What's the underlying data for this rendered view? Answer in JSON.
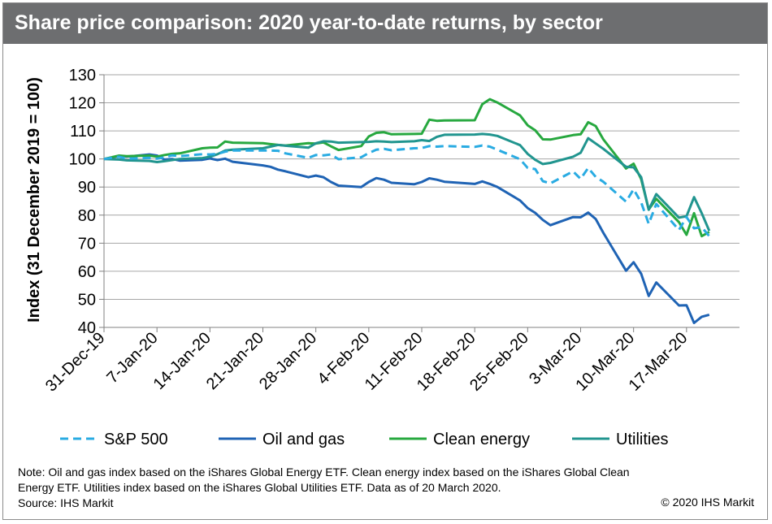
{
  "header": {
    "title": "Share price comparison: 2020 year-to-date returns, by sector"
  },
  "notes": {
    "line1": "Note: Oil and gas index based on the iShares Global Energy ETF. Clean energy index based on the iShares Global Clean",
    "line2": "Energy ETF. Utilities index based on the iShares Global Utilities ETF. Data as of 20 March 2020.",
    "source": "Source: IHS Markit",
    "copyright": "© 2020 IHS Markit"
  },
  "colors": {
    "sp500": "#29abe2",
    "oil_gas": "#1f63b4",
    "clean_energy": "#27a83f",
    "utilities": "#21958f",
    "title_bar": "#6d6e70"
  },
  "chart_data": {
    "type": "line",
    "title": "Share price comparison: 2020 year-to-date returns, by sector",
    "ylabel": "Index (31 December 2019 = 100)",
    "xlabel": "",
    "ylim": [
      40,
      130
    ],
    "yticks": [
      40,
      50,
      60,
      70,
      80,
      90,
      100,
      110,
      120,
      130
    ],
    "xlim": [
      "2019-12-31",
      "2020-03-24"
    ],
    "xticks": [
      "2019-12-31",
      "2020-01-07",
      "2020-01-14",
      "2020-01-21",
      "2020-01-28",
      "2020-02-04",
      "2020-02-11",
      "2020-02-18",
      "2020-02-25",
      "2020-03-03",
      "2020-03-10",
      "2020-03-17"
    ],
    "xtick_labels": [
      "31-Dec-19",
      "7-Jan-20",
      "14-Jan-20",
      "21-Jan-20",
      "28-Jan-20",
      "4-Feb-20",
      "11-Feb-20",
      "18-Feb-20",
      "25-Feb-20",
      "3-Mar-20",
      "10-Mar-20",
      "17-Mar-20"
    ],
    "grid": true,
    "legend_position": "bottom",
    "x": [
      "2019-12-31",
      "2020-01-02",
      "2020-01-03",
      "2020-01-06",
      "2020-01-07",
      "2020-01-08",
      "2020-01-09",
      "2020-01-10",
      "2020-01-13",
      "2020-01-14",
      "2020-01-15",
      "2020-01-16",
      "2020-01-17",
      "2020-01-21",
      "2020-01-22",
      "2020-01-23",
      "2020-01-24",
      "2020-01-27",
      "2020-01-28",
      "2020-01-29",
      "2020-01-30",
      "2020-01-31",
      "2020-02-03",
      "2020-02-04",
      "2020-02-05",
      "2020-02-06",
      "2020-02-07",
      "2020-02-10",
      "2020-02-11",
      "2020-02-12",
      "2020-02-13",
      "2020-02-14",
      "2020-02-18",
      "2020-02-19",
      "2020-02-20",
      "2020-02-21",
      "2020-02-24",
      "2020-02-25",
      "2020-02-26",
      "2020-02-27",
      "2020-02-28",
      "2020-03-02",
      "2020-03-03",
      "2020-03-04",
      "2020-03-05",
      "2020-03-06",
      "2020-03-09",
      "2020-03-10",
      "2020-03-11",
      "2020-03-12",
      "2020-03-13",
      "2020-03-16",
      "2020-03-17",
      "2020-03-18",
      "2020-03-19",
      "2020-03-20"
    ],
    "series": [
      {
        "name": "S&P 500",
        "style": "dashed",
        "color": "#29abe2",
        "values": [
          100.0,
          100.8,
          100.1,
          100.4,
          100.1,
          100.6,
          101.3,
          101.0,
          101.7,
          101.6,
          101.8,
          102.6,
          103.0,
          103.0,
          103.0,
          102.9,
          102.0,
          100.4,
          101.4,
          101.3,
          101.6,
          99.9,
          100.6,
          102.1,
          103.3,
          103.6,
          103.1,
          103.8,
          103.9,
          104.6,
          104.4,
          104.6,
          104.3,
          104.8,
          104.4,
          103.3,
          99.9,
          96.8,
          96.4,
          92.1,
          91.3,
          95.6,
          92.9,
          96.8,
          93.6,
          91.9,
          84.8,
          89.2,
          84.5,
          76.9,
          84.0,
          74.7,
          79.3,
          75.3,
          75.7,
          72.5
        ]
      },
      {
        "name": "Oil and gas",
        "style": "solid",
        "color": "#1f63b4",
        "values": [
          100.0,
          101.0,
          100.8,
          101.6,
          101.2,
          99.8,
          100.0,
          99.4,
          99.7,
          100.2,
          99.6,
          100.1,
          99.0,
          97.7,
          97.2,
          96.2,
          95.6,
          93.5,
          94.1,
          93.5,
          91.8,
          90.5,
          90.0,
          91.8,
          93.2,
          92.6,
          91.5,
          91.0,
          91.8,
          93.1,
          92.6,
          91.9,
          91.1,
          92.0,
          91.1,
          90.0,
          85.2,
          82.5,
          80.8,
          78.3,
          76.4,
          79.3,
          79.2,
          80.9,
          78.6,
          73.7,
          60.2,
          63.2,
          59.1,
          51.2,
          56.0,
          47.8,
          47.9,
          41.6,
          43.8,
          44.5
        ]
      },
      {
        "name": "Clean energy",
        "style": "solid",
        "color": "#27a83f",
        "values": [
          100.0,
          101.2,
          101.0,
          101.2,
          100.8,
          101.4,
          101.8,
          102.0,
          103.8,
          104.0,
          104.1,
          106.2,
          105.8,
          105.6,
          105.3,
          105.0,
          104.8,
          105.6,
          105.5,
          105.9,
          104.5,
          103.2,
          104.6,
          108.0,
          109.3,
          109.5,
          108.8,
          108.9,
          109.0,
          114.0,
          113.6,
          113.7,
          113.8,
          119.5,
          121.3,
          120.1,
          115.5,
          112.0,
          110.2,
          107.0,
          106.9,
          108.5,
          108.8,
          113.1,
          111.7,
          107.0,
          96.6,
          98.3,
          92.8,
          82.0,
          85.8,
          77.5,
          73.0,
          80.7,
          72.5,
          74.0
        ]
      },
      {
        "name": "Utilities",
        "style": "solid",
        "color": "#21958f",
        "values": [
          100.0,
          99.8,
          99.5,
          99.3,
          98.9,
          99.2,
          99.6,
          100.0,
          100.3,
          100.8,
          101.7,
          103.0,
          103.3,
          103.8,
          104.4,
          105.0,
          104.7,
          104.0,
          105.6,
          106.3,
          106.2,
          105.8,
          106.0,
          106.1,
          106.3,
          106.2,
          106.0,
          106.3,
          106.7,
          106.4,
          107.9,
          108.6,
          108.7,
          108.9,
          108.7,
          108.2,
          104.9,
          101.8,
          99.7,
          98.2,
          98.6,
          100.8,
          102.2,
          107.4,
          105.5,
          103.6,
          97.2,
          97.0,
          93.5,
          81.9,
          87.5,
          79.1,
          79.6,
          86.4,
          80.7,
          74.4
        ]
      }
    ]
  }
}
